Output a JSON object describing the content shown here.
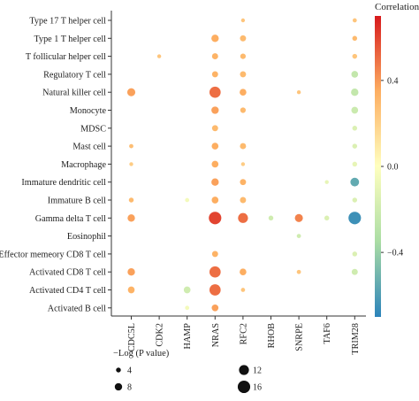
{
  "chart_data": {
    "type": "scatter",
    "title": "",
    "xlabel": "",
    "ylabel": "",
    "genes": [
      "CDC5L",
      "CDK2",
      "HAMP",
      "NRAS",
      "RFC2",
      "RHOB",
      "SNRPE",
      "TAF6",
      "TRIM28"
    ],
    "highlight_gene": "HAMP",
    "highlight_color": "#e8443a",
    "cells": [
      "Type 17 T helper cell",
      "Type 1 T helper cell",
      "T follicular helper cell",
      "Regulatory T cell",
      "Natural killer cell",
      "Monocyte",
      "MDSC",
      "Mast cell",
      "Macrophage",
      "Immature dendritic cell",
      "Immature B cell",
      "Gamma delta T cell",
      "Eosinophil",
      "Effector memeory CD8 T cell",
      "Activated CD8 T cell",
      "Activated CD4 T cell",
      "Activated B cell"
    ],
    "points": [
      {
        "gene": "RFC2",
        "cell": "Type 17 T helper cell",
        "correlation": 0.25,
        "neglogp": 2.5
      },
      {
        "gene": "TRIM28",
        "cell": "Type 17 T helper cell",
        "correlation": 0.25,
        "neglogp": 3
      },
      {
        "gene": "NRAS",
        "cell": "Type 1 T helper cell",
        "correlation": 0.35,
        "neglogp": 8
      },
      {
        "gene": "RFC2",
        "cell": "Type 1 T helper cell",
        "correlation": 0.3,
        "neglogp": 6
      },
      {
        "gene": "TRIM28",
        "cell": "Type 1 T helper cell",
        "correlation": 0.3,
        "neglogp": 4
      },
      {
        "gene": "CDK2",
        "cell": "T follicular helper cell",
        "correlation": 0.25,
        "neglogp": 2.5
      },
      {
        "gene": "NRAS",
        "cell": "T follicular helper cell",
        "correlation": 0.33,
        "neglogp": 6
      },
      {
        "gene": "RFC2",
        "cell": "T follicular helper cell",
        "correlation": 0.3,
        "neglogp": 5
      },
      {
        "gene": "TRIM28",
        "cell": "T follicular helper cell",
        "correlation": 0.25,
        "neglogp": 4
      },
      {
        "gene": "NRAS",
        "cell": "Regulatory T cell",
        "correlation": 0.33,
        "neglogp": 6
      },
      {
        "gene": "RFC2",
        "cell": "Regulatory T cell",
        "correlation": 0.3,
        "neglogp": 6
      },
      {
        "gene": "TRIM28",
        "cell": "Regulatory T cell",
        "correlation": -0.25,
        "neglogp": 7
      },
      {
        "gene": "CDC5L",
        "cell": "Natural killer cell",
        "correlation": 0.38,
        "neglogp": 9
      },
      {
        "gene": "NRAS",
        "cell": "Natural killer cell",
        "correlation": 0.5,
        "neglogp": 14
      },
      {
        "gene": "RFC2",
        "cell": "Natural killer cell",
        "correlation": 0.35,
        "neglogp": 7
      },
      {
        "gene": "SNRPE",
        "cell": "Natural killer cell",
        "correlation": 0.25,
        "neglogp": 2.5
      },
      {
        "gene": "TRIM28",
        "cell": "Natural killer cell",
        "correlation": -0.25,
        "neglogp": 8
      },
      {
        "gene": "NRAS",
        "cell": "Monocyte",
        "correlation": 0.38,
        "neglogp": 8
      },
      {
        "gene": "RFC2",
        "cell": "Monocyte",
        "correlation": 0.3,
        "neglogp": 5
      },
      {
        "gene": "TRIM28",
        "cell": "Monocyte",
        "correlation": -0.22,
        "neglogp": 7
      },
      {
        "gene": "NRAS",
        "cell": "MDSC",
        "correlation": 0.3,
        "neglogp": 6
      },
      {
        "gene": "TRIM28",
        "cell": "MDSC",
        "correlation": -0.15,
        "neglogp": 4
      },
      {
        "gene": "CDC5L",
        "cell": "Mast cell",
        "correlation": 0.28,
        "neglogp": 3
      },
      {
        "gene": "NRAS",
        "cell": "Mast cell",
        "correlation": 0.35,
        "neglogp": 7
      },
      {
        "gene": "RFC2",
        "cell": "Mast cell",
        "correlation": 0.3,
        "neglogp": 6
      },
      {
        "gene": "TRIM28",
        "cell": "Mast cell",
        "correlation": -0.15,
        "neglogp": 4
      },
      {
        "gene": "CDC5L",
        "cell": "Macrophage",
        "correlation": 0.22,
        "neglogp": 2.5
      },
      {
        "gene": "NRAS",
        "cell": "Macrophage",
        "correlation": 0.35,
        "neglogp": 7
      },
      {
        "gene": "RFC2",
        "cell": "Macrophage",
        "correlation": 0.22,
        "neglogp": 2.5
      },
      {
        "gene": "TRIM28",
        "cell": "Macrophage",
        "correlation": -0.1,
        "neglogp": 4
      },
      {
        "gene": "NRAS",
        "cell": "Immature dendritic cell",
        "correlation": 0.38,
        "neglogp": 8
      },
      {
        "gene": "RFC2",
        "cell": "Immature dendritic cell",
        "correlation": 0.33,
        "neglogp": 6
      },
      {
        "gene": "TAF6",
        "cell": "Immature dendritic cell",
        "correlation": -0.1,
        "neglogp": 2.5
      },
      {
        "gene": "TRIM28",
        "cell": "Immature dendritic cell",
        "correlation": -0.55,
        "neglogp": 10
      },
      {
        "gene": "CDC5L",
        "cell": "Immature B cell",
        "correlation": 0.3,
        "neglogp": 4
      },
      {
        "gene": "HAMP",
        "cell": "Immature B cell",
        "correlation": -0.05,
        "neglogp": 3
      },
      {
        "gene": "NRAS",
        "cell": "Immature B cell",
        "correlation": 0.35,
        "neglogp": 7
      },
      {
        "gene": "RFC2",
        "cell": "Immature B cell",
        "correlation": 0.3,
        "neglogp": 6
      },
      {
        "gene": "TRIM28",
        "cell": "Immature B cell",
        "correlation": -0.15,
        "neglogp": 4
      },
      {
        "gene": "CDC5L",
        "cell": "Gamma delta T cell",
        "correlation": 0.38,
        "neglogp": 8
      },
      {
        "gene": "NRAS",
        "cell": "Gamma delta T cell",
        "correlation": 0.6,
        "neglogp": 16
      },
      {
        "gene": "RFC2",
        "cell": "Gamma delta T cell",
        "correlation": 0.5,
        "neglogp": 12
      },
      {
        "gene": "RHOB",
        "cell": "Gamma delta T cell",
        "correlation": -0.2,
        "neglogp": 4
      },
      {
        "gene": "SNRPE",
        "cell": "Gamma delta T cell",
        "correlation": 0.45,
        "neglogp": 9
      },
      {
        "gene": "TAF6",
        "cell": "Gamma delta T cell",
        "correlation": -0.15,
        "neglogp": 4
      },
      {
        "gene": "TRIM28",
        "cell": "Gamma delta T cell",
        "correlation": -0.65,
        "neglogp": 16
      },
      {
        "gene": "SNRPE",
        "cell": "Eosinophil",
        "correlation": -0.2,
        "neglogp": 3
      },
      {
        "gene": "NRAS",
        "cell": "Effector memeory CD8 T cell",
        "correlation": 0.33,
        "neglogp": 6
      },
      {
        "gene": "TRIM28",
        "cell": "Effector memeory CD8 T cell",
        "correlation": -0.15,
        "neglogp": 4
      },
      {
        "gene": "CDC5L",
        "cell": "Activated CD8 T cell",
        "correlation": 0.38,
        "neglogp": 8
      },
      {
        "gene": "NRAS",
        "cell": "Activated CD8 T cell",
        "correlation": 0.5,
        "neglogp": 14
      },
      {
        "gene": "RFC2",
        "cell": "Activated CD8 T cell",
        "correlation": 0.35,
        "neglogp": 7
      },
      {
        "gene": "SNRPE",
        "cell": "Activated CD8 T cell",
        "correlation": 0.25,
        "neglogp": 3
      },
      {
        "gene": "TRIM28",
        "cell": "Activated CD8 T cell",
        "correlation": -0.2,
        "neglogp": 6
      },
      {
        "gene": "CDC5L",
        "cell": "Activated CD4 T cell",
        "correlation": 0.33,
        "neglogp": 7
      },
      {
        "gene": "HAMP",
        "cell": "Activated CD4 T cell",
        "correlation": -0.2,
        "neglogp": 7
      },
      {
        "gene": "NRAS",
        "cell": "Activated CD4 T cell",
        "correlation": 0.5,
        "neglogp": 14
      },
      {
        "gene": "RFC2",
        "cell": "Activated CD4 T cell",
        "correlation": 0.25,
        "neglogp": 3
      },
      {
        "gene": "HAMP",
        "cell": "Activated B cell",
        "correlation": -0.05,
        "neglogp": 3
      },
      {
        "gene": "NRAS",
        "cell": "Activated B cell",
        "correlation": 0.38,
        "neglogp": 7
      }
    ],
    "color_scale": {
      "title": "Correlation",
      "min": -0.7,
      "max": 0.7,
      "ticks": [
        0.4,
        0.0,
        -0.4
      ],
      "tick_labels": [
        "0.4",
        "0.0",
        "−0.4"
      ],
      "colors": [
        "#2b83ba",
        "#abdda4",
        "#ffffbf",
        "#fdae61",
        "#d7191c"
      ]
    },
    "size_legend": {
      "title": "−Log (P value)",
      "entries": [
        {
          "label": "4",
          "value": 4
        },
        {
          "label": "8",
          "value": 8
        },
        {
          "label": "12",
          "value": 12
        },
        {
          "label": "16",
          "value": 16
        }
      ]
    }
  }
}
